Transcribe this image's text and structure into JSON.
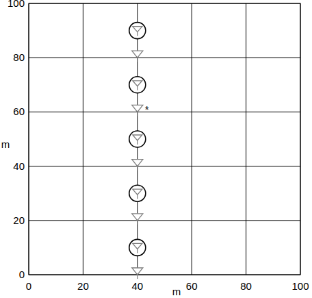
{
  "chart_data": {
    "type": "scatter",
    "xlabel": "m",
    "ylabel": "m",
    "xlim": [
      0,
      100
    ],
    "ylim": [
      0,
      100
    ],
    "xticks": [
      0,
      20,
      40,
      60,
      80,
      100
    ],
    "yticks": [
      0,
      20,
      40,
      60,
      80,
      100
    ],
    "grid": true,
    "series": [
      {
        "color": "#808080",
        "marker": "triangle",
        "x": [
          40,
          40,
          40,
          40,
          40
        ],
        "values": [
          0,
          20,
          40,
          60,
          80
        ]
      },
      {
        "color": "#808080",
        "marker": "circled-triangle",
        "x": [
          40,
          40,
          40,
          40,
          40
        ],
        "values": [
          10,
          30,
          50,
          70,
          90
        ]
      }
    ],
    "annotations": [
      {
        "text": "*",
        "x": 40,
        "y": 60
      }
    ]
  }
}
